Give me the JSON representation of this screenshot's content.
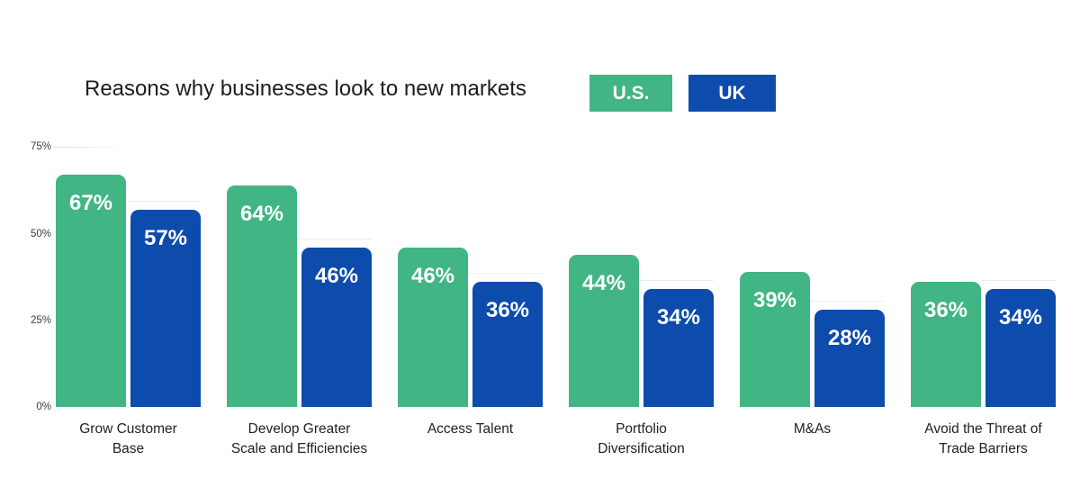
{
  "title": "Reasons why businesses look to new markets",
  "legend": {
    "us": {
      "label": "U.S.",
      "color": "#41b584"
    },
    "uk": {
      "label": "UK",
      "color": "#0d4bac"
    }
  },
  "y_axis": {
    "tick_labels": [
      "75%",
      "50%",
      "25%",
      "0%"
    ]
  },
  "chart_data": {
    "type": "bar",
    "title": "Reasons why businesses look to new markets",
    "categories": [
      "Grow Customer\nBase",
      "Develop Greater\nScale and Efficiencies",
      "Access Talent",
      "Portfolio\nDiversification",
      "M&As",
      "Avoid the Threat of\nTrade Barriers"
    ],
    "series": [
      {
        "name": "U.S.",
        "color": "#41b584",
        "values": [
          67,
          64,
          46,
          44,
          39,
          36
        ]
      },
      {
        "name": "UK",
        "color": "#0d4bac",
        "values": [
          57,
          46,
          36,
          34,
          28,
          34
        ]
      }
    ],
    "value_suffix": "%",
    "ylim": [
      0,
      75
    ],
    "yticks": [
      75,
      50,
      25,
      0
    ],
    "grid": "minimal-segment-at-75",
    "legend_position": "top-right-of-title",
    "bar_label_position": "inside-top",
    "bar_label_color": "#ffffff",
    "xlabel": "",
    "ylabel": ""
  }
}
